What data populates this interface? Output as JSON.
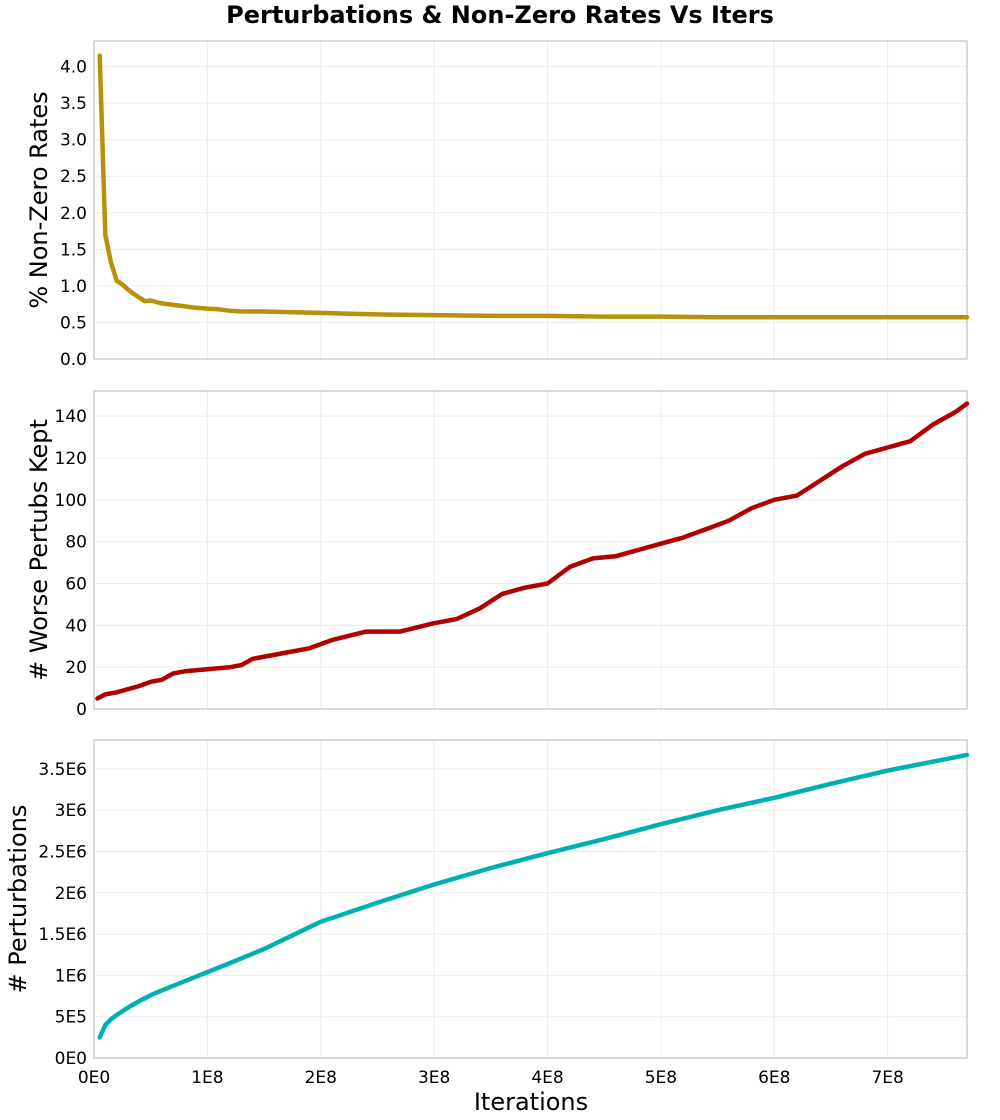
{
  "chart_data": {
    "title": "Perturbations & Non-Zero Rates Vs Iters",
    "xlabel": "Iterations",
    "x_axis": {
      "ticks": [
        0,
        100000000,
        200000000,
        300000000,
        400000000,
        500000000,
        600000000,
        700000000
      ],
      "tick_labels": [
        "0E0",
        "1E8",
        "2E8",
        "3E8",
        "4E8",
        "5E8",
        "6E8",
        "7E8"
      ],
      "range": [
        0,
        770000000
      ]
    },
    "grid": true,
    "panels": [
      {
        "type": "line",
        "ylabel": "% Non-Zero Rates",
        "color": "#b8900a",
        "ylim": [
          0,
          4.35
        ],
        "yticks": [
          0,
          0.5,
          1.0,
          1.5,
          2.0,
          2.5,
          3.0,
          3.5,
          4.0
        ],
        "ytick_labels": [
          "0.0",
          "0.5",
          "1.0",
          "1.5",
          "2.0",
          "2.5",
          "3.0",
          "3.5",
          "4.0"
        ],
        "x": [
          5000000,
          10000000,
          15000000,
          20000000,
          25000000,
          30000000,
          35000000,
          40000000,
          45000000,
          50000000,
          55000000,
          60000000,
          70000000,
          80000000,
          90000000,
          100000000,
          110000000,
          120000000,
          130000000,
          140000000,
          150000000,
          175000000,
          200000000,
          225000000,
          250000000,
          300000000,
          350000000,
          400000000,
          450000000,
          500000000,
          550000000,
          600000000,
          650000000,
          700000000,
          770000000
        ],
        "y": [
          4.15,
          1.7,
          1.32,
          1.07,
          1.02,
          0.95,
          0.89,
          0.84,
          0.79,
          0.8,
          0.78,
          0.76,
          0.74,
          0.72,
          0.7,
          0.69,
          0.68,
          0.66,
          0.65,
          0.65,
          0.65,
          0.64,
          0.63,
          0.62,
          0.61,
          0.6,
          0.59,
          0.59,
          0.58,
          0.58,
          0.57,
          0.57,
          0.57,
          0.57,
          0.57
        ]
      },
      {
        "type": "line",
        "ylabel": "# Worse Pertubs Kept",
        "color": "#b00000",
        "ylim": [
          0,
          152
        ],
        "yticks": [
          0,
          20,
          40,
          60,
          80,
          100,
          120,
          140
        ],
        "ytick_labels": [
          "0",
          "20",
          "40",
          "60",
          "80",
          "100",
          "120",
          "140"
        ],
        "x": [
          3000000,
          10000000,
          20000000,
          40000000,
          50000000,
          60000000,
          70000000,
          80000000,
          100000000,
          120000000,
          130000000,
          140000000,
          170000000,
          190000000,
          210000000,
          240000000,
          270000000,
          300000000,
          320000000,
          340000000,
          360000000,
          380000000,
          400000000,
          420000000,
          440000000,
          460000000,
          480000000,
          500000000,
          520000000,
          540000000,
          560000000,
          580000000,
          600000000,
          620000000,
          640000000,
          660000000,
          680000000,
          700000000,
          720000000,
          740000000,
          760000000,
          770000000
        ],
        "y": [
          5,
          7,
          8,
          11,
          13,
          14,
          17,
          18,
          19,
          20,
          21,
          24,
          27,
          29,
          33,
          37,
          37,
          41,
          43,
          48,
          55,
          58,
          60,
          68,
          72,
          73,
          76,
          79,
          82,
          86,
          90,
          96,
          100,
          102,
          109,
          116,
          122,
          125,
          128,
          136,
          142,
          146
        ]
      },
      {
        "type": "line",
        "ylabel": "# Perturbations",
        "color": "#00b0b0",
        "ylim": [
          0,
          3850000
        ],
        "yticks": [
          0,
          500000,
          1000000,
          1500000,
          2000000,
          2500000,
          3000000,
          3500000
        ],
        "ytick_labels": [
          "0E0",
          "5E5",
          "1E6",
          "1.5E6",
          "2E6",
          "2.5E6",
          "3E6",
          "3.5E6"
        ],
        "x": [
          5000000,
          10000000,
          15000000,
          20000000,
          30000000,
          40000000,
          50000000,
          60000000,
          80000000,
          100000000,
          120000000,
          150000000,
          200000000,
          250000000,
          300000000,
          350000000,
          400000000,
          450000000,
          500000000,
          550000000,
          600000000,
          650000000,
          700000000,
          770000000
        ],
        "y": [
          250000,
          400000,
          470000,
          520000,
          610000,
          690000,
          760000,
          820000,
          930000,
          1040000,
          1150000,
          1320000,
          1650000,
          1880000,
          2100000,
          2300000,
          2480000,
          2650000,
          2830000,
          3000000,
          3150000,
          3320000,
          3480000,
          3670000
        ]
      }
    ]
  }
}
